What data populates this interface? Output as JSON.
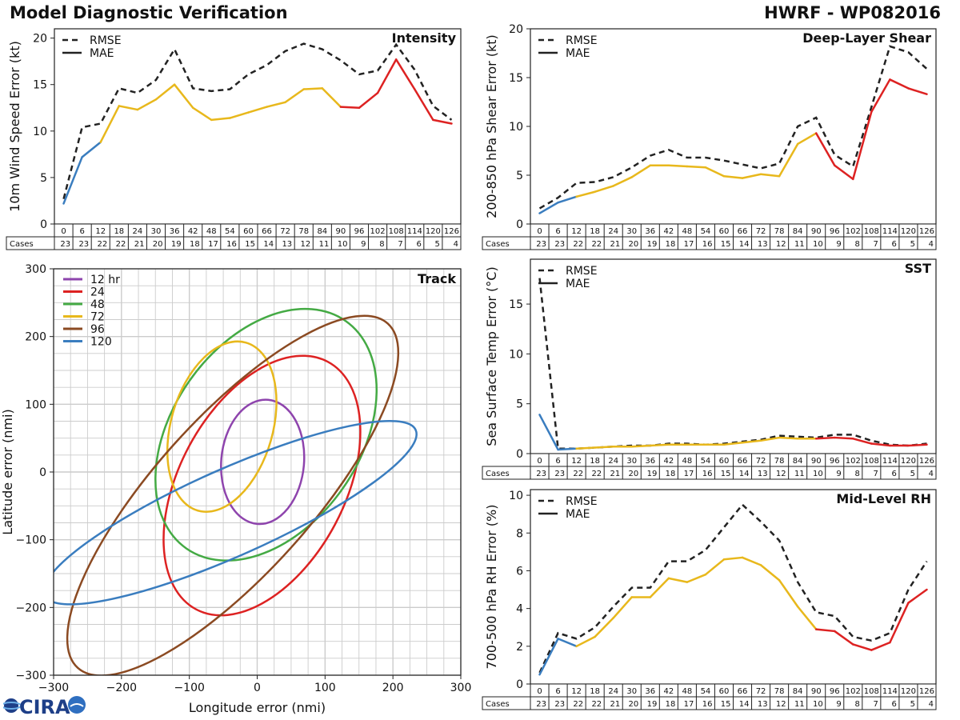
{
  "header": {
    "title": "Model Diagnostic Verification",
    "storm": "HWRF - WP082016"
  },
  "logo": {
    "text": "CIRA"
  },
  "colors": {
    "rmse": "#222222",
    "seg_blue": "#3a7dbf",
    "seg_yellow": "#e8b81c",
    "seg_red": "#dd2222",
    "grid": "#cccccc"
  },
  "legend": {
    "rmse": "RMSE",
    "mae": "MAE"
  },
  "table": {
    "cases_label": "Cases",
    "hours": [
      "0",
      "6",
      "12",
      "18",
      "24",
      "30",
      "36",
      "42",
      "48",
      "54",
      "60",
      "66",
      "72",
      "78",
      "84",
      "90",
      "96",
      "102",
      "108",
      "114",
      "120",
      "126"
    ],
    "cases": [
      "23",
      "23",
      "22",
      "22",
      "21",
      "20",
      "19",
      "18",
      "17",
      "16",
      "15",
      "14",
      "13",
      "12",
      "11",
      "10",
      "9",
      "8",
      "7",
      "6",
      "5",
      "4"
    ]
  },
  "chart_data": [
    {
      "id": "intensity",
      "type": "line",
      "title": "Intensity",
      "ylabel": "10m Wind Speed Error (kt)",
      "ylim": [
        0,
        21
      ],
      "yticks": [
        "0",
        "5",
        "10",
        "15",
        "20"
      ],
      "x": [
        0,
        6,
        12,
        18,
        24,
        30,
        36,
        42,
        48,
        54,
        60,
        66,
        72,
        78,
        84,
        90,
        96,
        102,
        108,
        114,
        120,
        126
      ],
      "series": [
        {
          "name": "RMSE",
          "style": "dashed",
          "values": [
            2.7,
            10.4,
            10.8,
            14.6,
            14.1,
            15.5,
            18.8,
            14.6,
            14.3,
            14.5,
            16.1,
            17.1,
            18.6,
            19.4,
            18.8,
            17.6,
            16.1,
            16.5,
            19.3,
            16.6,
            12.7,
            11.2
          ]
        },
        {
          "name": "MAE",
          "style": "solid",
          "values": [
            2.2,
            7.2,
            8.8,
            12.7,
            12.3,
            13.4,
            15.0,
            12.5,
            11.2,
            11.4,
            12.0,
            12.6,
            13.1,
            14.5,
            14.6,
            12.6,
            12.5,
            14.1,
            17.7,
            14.5,
            11.2,
            10.8
          ]
        }
      ]
    },
    {
      "id": "shear",
      "type": "line",
      "title": "Deep-Layer Shear",
      "ylabel": "200-850 hPa Shear Error (kt)",
      "ylim": [
        0,
        20
      ],
      "yticks": [
        "0",
        "5",
        "10",
        "15",
        "20"
      ],
      "x": [
        0,
        6,
        12,
        18,
        24,
        30,
        36,
        42,
        48,
        54,
        60,
        66,
        72,
        78,
        84,
        90,
        96,
        102,
        108,
        114,
        120,
        126
      ],
      "series": [
        {
          "name": "RMSE",
          "style": "dashed",
          "values": [
            1.6,
            2.7,
            4.2,
            4.3,
            4.8,
            5.8,
            7.0,
            7.6,
            6.8,
            6.8,
            6.5,
            6.1,
            5.7,
            6.2,
            10.0,
            10.9,
            7.1,
            5.9,
            12.0,
            18.2,
            17.6,
            15.9
          ]
        },
        {
          "name": "MAE",
          "style": "solid",
          "values": [
            1.1,
            2.2,
            2.8,
            3.3,
            3.9,
            4.8,
            6.0,
            6.0,
            5.9,
            5.8,
            4.9,
            4.7,
            5.1,
            4.9,
            8.2,
            9.3,
            6.0,
            4.6,
            11.5,
            14.8,
            13.9,
            13.3
          ]
        }
      ]
    },
    {
      "id": "sst",
      "type": "line",
      "title": "SST",
      "ylabel": "Sea Surface Temp Error (°C)",
      "ylim": [
        0,
        19.5
      ],
      "yticks": [
        "0",
        "5",
        "10",
        "15"
      ],
      "x": [
        0,
        6,
        12,
        18,
        24,
        30,
        36,
        42,
        48,
        54,
        60,
        66,
        72,
        78,
        84,
        90,
        96,
        102,
        108,
        114,
        120,
        126
      ],
      "series": [
        {
          "name": "RMSE",
          "style": "dashed",
          "values": [
            17.6,
            0.5,
            0.5,
            0.6,
            0.7,
            0.8,
            0.8,
            1.0,
            1.0,
            0.9,
            1.0,
            1.2,
            1.4,
            1.8,
            1.7,
            1.6,
            1.9,
            1.9,
            1.3,
            0.9,
            0.8,
            1.0
          ]
        },
        {
          "name": "MAE",
          "style": "solid",
          "values": [
            3.9,
            0.4,
            0.5,
            0.6,
            0.7,
            0.7,
            0.8,
            0.9,
            0.9,
            0.9,
            0.9,
            1.1,
            1.3,
            1.6,
            1.5,
            1.5,
            1.6,
            1.5,
            1.0,
            0.8,
            0.8,
            0.9
          ]
        }
      ]
    },
    {
      "id": "rh",
      "type": "line",
      "title": "Mid-Level RH",
      "ylabel": "700-500 hPa RH Error (%)",
      "ylim": [
        0,
        10.3
      ],
      "yticks": [
        "0",
        "2",
        "4",
        "6",
        "8",
        "10"
      ],
      "x": [
        0,
        6,
        12,
        18,
        24,
        30,
        36,
        42,
        48,
        54,
        60,
        66,
        72,
        78,
        84,
        90,
        96,
        102,
        108,
        114,
        120,
        126
      ],
      "series": [
        {
          "name": "RMSE",
          "style": "dashed",
          "values": [
            0.6,
            2.7,
            2.4,
            3.0,
            4.1,
            5.1,
            5.1,
            6.5,
            6.5,
            7.1,
            8.3,
            9.5,
            8.6,
            7.6,
            5.4,
            3.8,
            3.6,
            2.5,
            2.3,
            2.7,
            5.0,
            6.5
          ]
        },
        {
          "name": "MAE",
          "style": "solid",
          "values": [
            0.5,
            2.4,
            2.0,
            2.5,
            3.5,
            4.6,
            4.6,
            5.6,
            5.4,
            5.8,
            6.6,
            6.7,
            6.3,
            5.5,
            4.1,
            2.9,
            2.8,
            2.1,
            1.8,
            2.2,
            4.3,
            5.0
          ]
        }
      ]
    },
    {
      "id": "track",
      "type": "scatter",
      "title": "Track",
      "xlabel": "Longitude error (nmi)",
      "ylabel": "Latitude error (nmi)",
      "xlim": [
        -300,
        300
      ],
      "ylim": [
        -300,
        300
      ],
      "xticks": [
        -300,
        -200,
        -100,
        0,
        100,
        200,
        300
      ],
      "yticks": [
        -300,
        -200,
        -100,
        0,
        100,
        200,
        300
      ],
      "xtick_labels": [
        "−300",
        "−200",
        "−100",
        "0",
        "100",
        "200",
        "300"
      ],
      "ytick_labels": [
        "−300",
        "−200",
        "−100",
        "0",
        "100",
        "200",
        "300"
      ],
      "ellipses": [
        {
          "name": "12 hr",
          "color": "#8e44ad",
          "cx": 8,
          "cy": 15,
          "rx": 61,
          "ry": 92,
          "angle": 5
        },
        {
          "name": "24",
          "color": "#dd2222",
          "cx": 7,
          "cy": -20,
          "rx": 122,
          "ry": 207,
          "angle": 28
        },
        {
          "name": "48",
          "color": "#44aa44",
          "cx": 13,
          "cy": 55,
          "rx": 138,
          "ry": 205,
          "angle": 35
        },
        {
          "name": "72",
          "color": "#e8b81c",
          "cx": -52,
          "cy": 67,
          "rx": 75,
          "ry": 129,
          "angle": 16
        },
        {
          "name": "96",
          "color": "#8b4a22",
          "cx": -36,
          "cy": -35,
          "rx": 115,
          "ry": 342,
          "angle": 42
        },
        {
          "name": "120",
          "color": "#3a7dbf",
          "cx": -40,
          "cy": -60,
          "rx": 64,
          "ry": 300,
          "angle": 66
        }
      ]
    }
  ]
}
